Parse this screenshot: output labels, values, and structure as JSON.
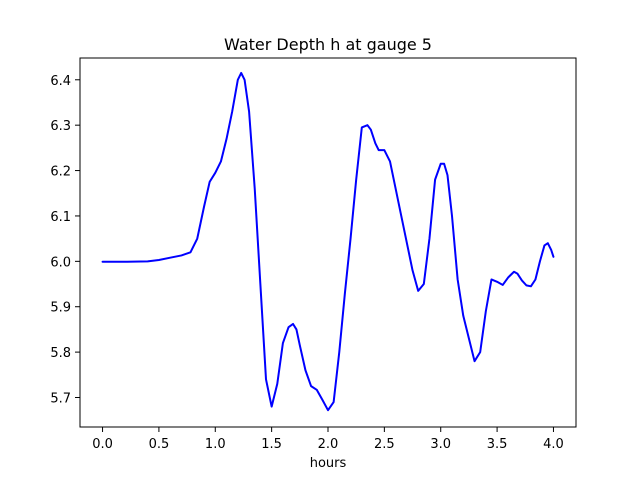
{
  "chart_data": {
    "type": "line",
    "title": "Water Depth h at gauge 5",
    "xlabel": "hours",
    "ylabel": "",
    "xlim": [
      -0.2,
      4.2
    ],
    "ylim": [
      5.635,
      6.448
    ],
    "xticks": [
      0.0,
      0.5,
      1.0,
      1.5,
      2.0,
      2.5,
      3.0,
      3.5,
      4.0
    ],
    "xtick_labels": [
      "0.0",
      "0.5",
      "1.0",
      "1.5",
      "2.0",
      "2.5",
      "3.0",
      "3.5",
      "4.0"
    ],
    "yticks": [
      5.7,
      5.8,
      5.9,
      6.0,
      6.1,
      6.2,
      6.3,
      6.4
    ],
    "ytick_labels": [
      "5.7",
      "5.8",
      "5.9",
      "6.0",
      "6.1",
      "6.2",
      "6.3",
      "6.4"
    ],
    "grid": false,
    "series": [
      {
        "color": "#0000ff",
        "x": [
          0.0,
          0.2,
          0.4,
          0.5,
          0.6,
          0.7,
          0.78,
          0.84,
          0.9,
          0.95,
          1.0,
          1.05,
          1.1,
          1.15,
          1.2,
          1.23,
          1.26,
          1.3,
          1.35,
          1.4,
          1.45,
          1.5,
          1.55,
          1.6,
          1.65,
          1.69,
          1.72,
          1.75,
          1.8,
          1.85,
          1.9,
          1.95,
          2.0,
          2.05,
          2.1,
          2.15,
          2.2,
          2.25,
          2.3,
          2.35,
          2.38,
          2.42,
          2.45,
          2.5,
          2.55,
          2.6,
          2.65,
          2.7,
          2.75,
          2.8,
          2.85,
          2.9,
          2.95,
          3.0,
          3.03,
          3.06,
          3.1,
          3.15,
          3.2,
          3.25,
          3.3,
          3.35,
          3.4,
          3.45,
          3.5,
          3.55,
          3.6,
          3.65,
          3.68,
          3.72,
          3.76,
          3.8,
          3.84,
          3.88,
          3.92,
          3.95,
          3.98,
          4.0
        ],
        "y": [
          5.999,
          5.999,
          6.0,
          6.003,
          6.008,
          6.013,
          6.02,
          6.05,
          6.12,
          6.175,
          6.195,
          6.22,
          6.27,
          6.33,
          6.4,
          6.415,
          6.4,
          6.33,
          6.16,
          5.95,
          5.74,
          5.68,
          5.73,
          5.82,
          5.855,
          5.862,
          5.85,
          5.815,
          5.76,
          5.725,
          5.717,
          5.695,
          5.672,
          5.69,
          5.8,
          5.93,
          6.05,
          6.18,
          6.295,
          6.3,
          6.29,
          6.26,
          6.245,
          6.245,
          6.22,
          6.16,
          6.1,
          6.04,
          5.98,
          5.935,
          5.95,
          6.05,
          6.18,
          6.215,
          6.215,
          6.19,
          6.1,
          5.96,
          5.88,
          5.83,
          5.78,
          5.8,
          5.89,
          5.96,
          5.955,
          5.948,
          5.965,
          5.977,
          5.973,
          5.958,
          5.947,
          5.945,
          5.96,
          6.0,
          6.035,
          6.04,
          6.025,
          6.01
        ]
      }
    ]
  }
}
